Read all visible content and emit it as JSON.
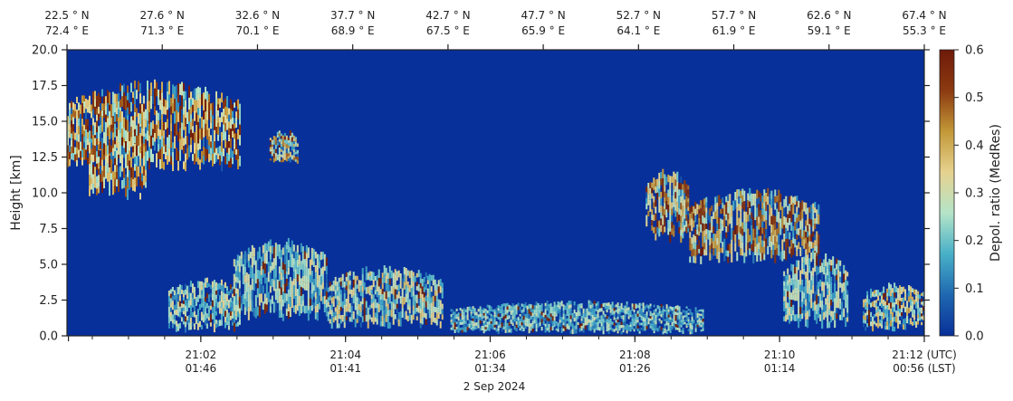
{
  "chart_data": {
    "type": "heatmap",
    "title": "",
    "ylabel": "Height [km]",
    "ylim": [
      0,
      20
    ],
    "y_ticks": [
      "0.0",
      "2.5",
      "5.0",
      "7.5",
      "10.0",
      "12.5",
      "15.0",
      "17.5",
      "20.0"
    ],
    "y_tick_values": [
      0,
      2.5,
      5,
      7.5,
      10,
      12.5,
      15,
      17.5,
      20
    ],
    "x_range_minutes": [
      0,
      11.85
    ],
    "x_ticks": [
      {
        "minute": 1.85,
        "utc": "21:02",
        "lst": "01:46"
      },
      {
        "minute": 3.85,
        "utc": "21:04",
        "lst": "01:41"
      },
      {
        "minute": 5.85,
        "utc": "21:06",
        "lst": "01:34"
      },
      {
        "minute": 7.85,
        "utc": "21:08",
        "lst": "01:26"
      },
      {
        "minute": 9.85,
        "utc": "21:10",
        "lst": "01:14"
      },
      {
        "minute": 11.85,
        "utc": "21:12 (UTC)",
        "lst": "00:56 (LST)"
      }
    ],
    "x_date_label": "2 Sep 2024",
    "top_ticks": [
      {
        "lat": "22.5 ° N",
        "lon": "72.4 ° E"
      },
      {
        "lat": "27.6 ° N",
        "lon": "71.3 ° E"
      },
      {
        "lat": "32.6 ° N",
        "lon": "70.1 ° E"
      },
      {
        "lat": "37.7 ° N",
        "lon": "68.9 ° E"
      },
      {
        "lat": "42.7 ° N",
        "lon": "67.5 ° E"
      },
      {
        "lat": "47.7 ° N",
        "lon": "65.9 ° E"
      },
      {
        "lat": "52.7 ° N",
        "lon": "64.1 ° E"
      },
      {
        "lat": "57.7 ° N",
        "lon": "61.9 ° E"
      },
      {
        "lat": "62.6 ° N",
        "lon": "59.1 ° E"
      },
      {
        "lat": "67.4 ° N",
        "lon": "55.3 ° E"
      }
    ],
    "colorbar": {
      "label": "Depol. ratio (MedRes)",
      "range": [
        0,
        0.6
      ],
      "ticks": [
        "0.0",
        "0.1",
        "0.2",
        "0.3",
        "0.4",
        "0.5",
        "0.6"
      ],
      "tick_values": [
        0,
        0.1,
        0.2,
        0.3,
        0.4,
        0.5,
        0.6
      ],
      "colors": [
        "#08309a",
        "#1f68b0",
        "#48b0c8",
        "#b4e4c8",
        "#e6d290",
        "#c39838",
        "#8c3a10",
        "#6e1a0a"
      ]
    },
    "background_color": "#08309a",
    "features": [
      {
        "name": "upper_cirrus_west",
        "t_start": 0.0,
        "t_end": 2.4,
        "h_bottom": 11.5,
        "h_top": 18.0,
        "depol": 0.42
      },
      {
        "name": "cirrus_fallstreak",
        "t_start": 0.3,
        "t_end": 1.1,
        "h_bottom": 9.5,
        "h_top": 16.0,
        "depol": 0.38
      },
      {
        "name": "cirrus_scattered",
        "t_start": 2.8,
        "t_end": 3.2,
        "h_bottom": 12.0,
        "h_top": 14.5,
        "depol": 0.35
      },
      {
        "name": "aerosol_layer_west",
        "t_start": 1.4,
        "t_end": 2.4,
        "h_bottom": 0.2,
        "h_top": 4.2,
        "depol": 0.25
      },
      {
        "name": "aerosol_columns",
        "t_start": 2.3,
        "t_end": 3.6,
        "h_bottom": 1.0,
        "h_top": 7.0,
        "depol": 0.25
      },
      {
        "name": "dust_layer_mid",
        "t_start": 3.6,
        "t_end": 5.2,
        "h_bottom": 0.5,
        "h_top": 5.0,
        "depol": 0.28
      },
      {
        "name": "boundary_layer",
        "t_start": 5.3,
        "t_end": 8.8,
        "h_bottom": 0.1,
        "h_top": 2.5,
        "depol": 0.22
      },
      {
        "name": "cirrus_east_a",
        "t_start": 8.0,
        "t_end": 8.6,
        "h_bottom": 6.5,
        "h_top": 11.8,
        "depol": 0.42
      },
      {
        "name": "cirrus_east_b",
        "t_start": 8.6,
        "t_end": 10.4,
        "h_bottom": 5.0,
        "h_top": 10.5,
        "depol": 0.4
      },
      {
        "name": "aerosol_east",
        "t_start": 9.9,
        "t_end": 10.8,
        "h_bottom": 0.5,
        "h_top": 6.0,
        "depol": 0.25
      },
      {
        "name": "low_layer_east",
        "t_start": 11.0,
        "t_end": 11.85,
        "h_bottom": 0.3,
        "h_top": 3.8,
        "depol": 0.3
      }
    ]
  }
}
